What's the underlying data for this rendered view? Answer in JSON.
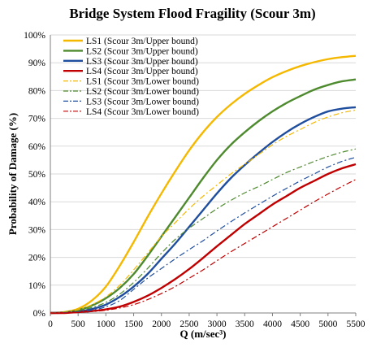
{
  "chart_data": {
    "type": "line",
    "title": "Bridge System Flood Fragility (Scour 3m)",
    "xlabel": "Q (m/sec³)",
    "ylabel": "Probability of Damage (%)",
    "xlim": [
      0,
      5500
    ],
    "ylim": [
      0,
      100
    ],
    "xticks": [
      "0",
      "500",
      "1000",
      "1500",
      "2000",
      "2500",
      "3000",
      "3500",
      "4000",
      "4500",
      "5000",
      "5500"
    ],
    "yticks": [
      "0%",
      "10%",
      "20%",
      "30%",
      "40%",
      "50%",
      "60%",
      "70%",
      "80%",
      "90%",
      "100%"
    ],
    "grid": true,
    "legend_position": "top-left",
    "x": [
      0,
      250,
      500,
      750,
      1000,
      1250,
      1500,
      1750,
      2000,
      2250,
      2500,
      2750,
      3000,
      3250,
      3500,
      3750,
      4000,
      4250,
      4500,
      4750,
      5000,
      5250,
      5500
    ],
    "series": [
      {
        "name": "LS1 (Scour 3m/Upper bound)",
        "color": "#F5B800",
        "dash": "solid",
        "values": [
          0,
          0.3,
          1.5,
          4.5,
          9.5,
          17,
          25.5,
          34.5,
          43,
          51,
          58.5,
          65,
          70.5,
          75,
          78.8,
          82,
          84.8,
          87,
          88.8,
          90.2,
          91.3,
          92,
          92.5
        ]
      },
      {
        "name": "LS2 (Scour 3m/Upper bound)",
        "color": "#4E8A2E",
        "dash": "solid",
        "values": [
          0,
          0.2,
          1,
          2.7,
          5.3,
          9,
          14,
          20.5,
          27.5,
          34.5,
          41.5,
          48.5,
          55,
          60.5,
          65,
          69,
          72.5,
          75.5,
          78,
          80.3,
          82,
          83.3,
          84
        ]
      },
      {
        "name": "LS3 (Scour 3m/Upper bound)",
        "color": "#1F4E9E",
        "dash": "solid",
        "values": [
          0,
          0.1,
          0.5,
          1.4,
          3,
          5.8,
          9.5,
          14,
          19.5,
          25,
          31,
          37,
          43,
          48.5,
          53.2,
          57.5,
          61.5,
          65,
          68,
          70.5,
          72.5,
          73.5,
          74
        ]
      },
      {
        "name": "LS4 (Scour 3m/Upper bound)",
        "color": "#C00000",
        "dash": "solid",
        "values": [
          0,
          0,
          0.3,
          0.7,
          1.3,
          2.3,
          4,
          6.2,
          9,
          12.2,
          15.8,
          19.8,
          24,
          28,
          32,
          35.5,
          39,
          42,
          45,
          47.5,
          50,
          52,
          53.5
        ]
      },
      {
        "name": "LS1 (Scour 3m/Lower bound)",
        "color": "#F5B800",
        "dash": "dashdot",
        "values": [
          0,
          0.3,
          1.2,
          3,
          5.8,
          10,
          15.5,
          21.5,
          27.5,
          32.5,
          37.5,
          42,
          46,
          50,
          53.5,
          57,
          60.5,
          63.5,
          66,
          68.5,
          70.5,
          72,
          73
        ]
      },
      {
        "name": "LS2 (Scour 3m/Lower bound)",
        "color": "#4E8A2E",
        "dash": "dashdot",
        "values": [
          0,
          0.2,
          0.8,
          2,
          3.8,
          6.8,
          11,
          16,
          21.5,
          26.5,
          30.5,
          34,
          37.5,
          40.5,
          43.2,
          45.5,
          48,
          50.5,
          52.5,
          54.5,
          56.3,
          57.8,
          59
        ]
      },
      {
        "name": "LS3 (Scour 3m/Lower bound)",
        "color": "#1F4E9E",
        "dash": "dashdot",
        "values": [
          0,
          0.1,
          0.4,
          1,
          2.2,
          4.5,
          8.5,
          12.5,
          16,
          19.5,
          22.8,
          26,
          29.5,
          32.8,
          36,
          39,
          42,
          44.8,
          47.5,
          50,
          52.5,
          54.5,
          56
        ]
      },
      {
        "name": "LS4 (Scour 3m/Lower bound)",
        "color": "#C00000",
        "dash": "dashdot",
        "values": [
          0,
          0,
          0.2,
          0.5,
          1,
          1.8,
          3,
          4.8,
          7,
          9.5,
          12.5,
          15.5,
          18.8,
          22,
          25,
          28,
          31,
          34,
          37,
          40,
          42.8,
          45.5,
          48
        ]
      }
    ]
  }
}
